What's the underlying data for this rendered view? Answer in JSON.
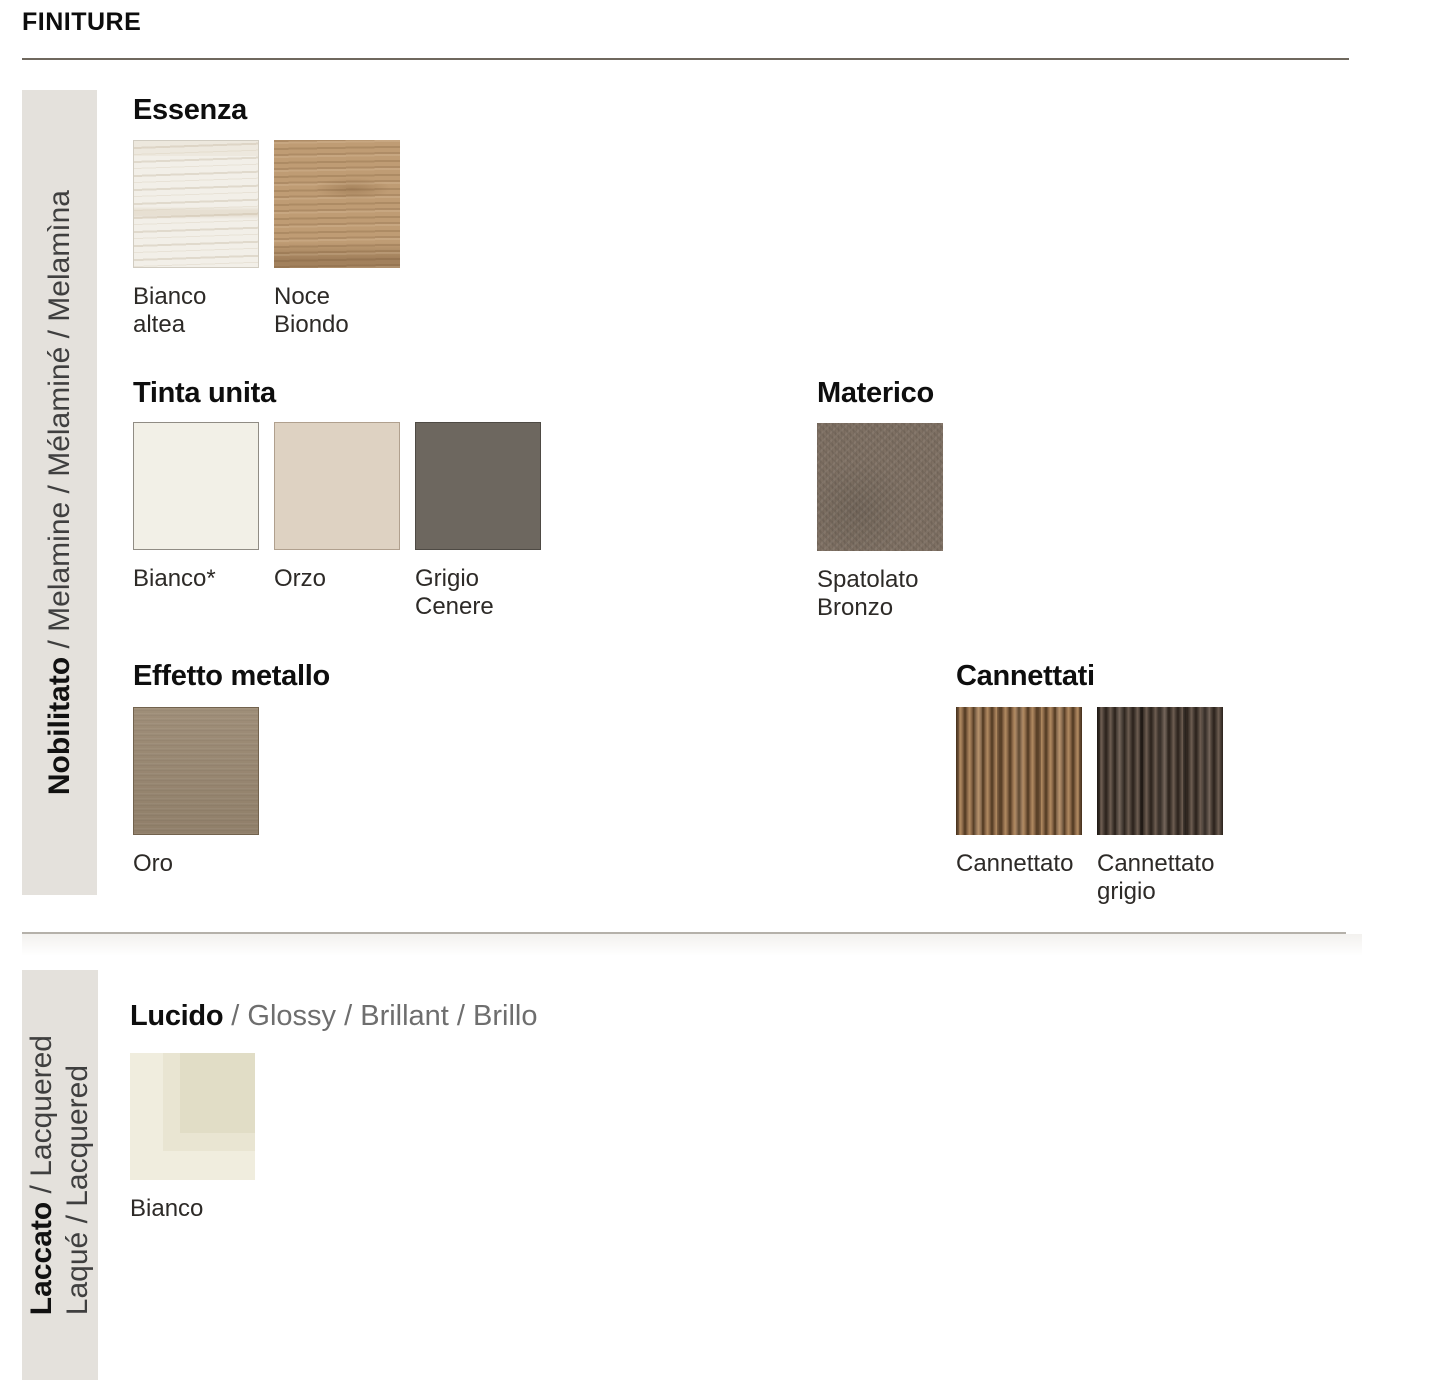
{
  "page": {
    "title": "FINITURE"
  },
  "colors": {
    "sidebar_band": "#e4e1dc",
    "rule_top": "#6f685e",
    "rule_mid": "#b5b1aa",
    "heading": "#0e0e0e",
    "label": "#2d2a27"
  },
  "nobilitato": {
    "sidebar": {
      "bold": "Nobilitato",
      "rest": " / Melamine / Mélaminé / Melamìna"
    },
    "groups": [
      {
        "id": "essenza",
        "title": "Essenza",
        "swatches": [
          {
            "name": [
              "Bianco",
              "altea"
            ],
            "color": "#f2efe8",
            "texture": "wood-light"
          },
          {
            "name": [
              "Noce",
              "Biondo"
            ],
            "color": "#bf9c74",
            "texture": "wood-walnut"
          }
        ]
      },
      {
        "id": "tinta-unita",
        "title": "Tinta unita",
        "swatches": [
          {
            "name": [
              "Bianco*"
            ],
            "color": "#f2f0e7",
            "texture": "solid"
          },
          {
            "name": [
              "Orzo"
            ],
            "color": "#ded2c2",
            "texture": "solid"
          },
          {
            "name": [
              "Grigio",
              "Cenere"
            ],
            "color": "#6d675f",
            "texture": "solid"
          }
        ]
      },
      {
        "id": "materico",
        "title": "Materico",
        "swatches": [
          {
            "name": [
              "Spatolato",
              "Bronzo"
            ],
            "color": "#7e7063",
            "texture": "plaster"
          }
        ]
      },
      {
        "id": "effetto-metallo",
        "title": "Effetto metallo",
        "swatches": [
          {
            "name": [
              "Oro"
            ],
            "color": "#998770",
            "texture": "metal"
          }
        ]
      },
      {
        "id": "cannettati",
        "title": "Cannettati",
        "swatches": [
          {
            "name": [
              "Cannettato"
            ],
            "color": "#8a6a4a",
            "texture": "fluted"
          },
          {
            "name": [
              "Cannettato",
              "grigio"
            ],
            "color": "#544740",
            "texture": "fluted-gray"
          }
        ]
      }
    ]
  },
  "laccato": {
    "sidebar": {
      "line1_bold": "Laccato",
      "line1_rest": " / Lacquered",
      "line2": "Laqué / Lacquered"
    },
    "groups": [
      {
        "id": "lucido",
        "title_bold": "Lucido",
        "title_rest": " / Glossy / Brillant / Brillo",
        "swatches": [
          {
            "name": [
              "Bianco"
            ],
            "color": "#f0edde",
            "layers": [
              "#f0edde",
              "#e9e5d2",
              "#e1ddc6"
            ],
            "texture": "lucido"
          }
        ]
      }
    ]
  }
}
